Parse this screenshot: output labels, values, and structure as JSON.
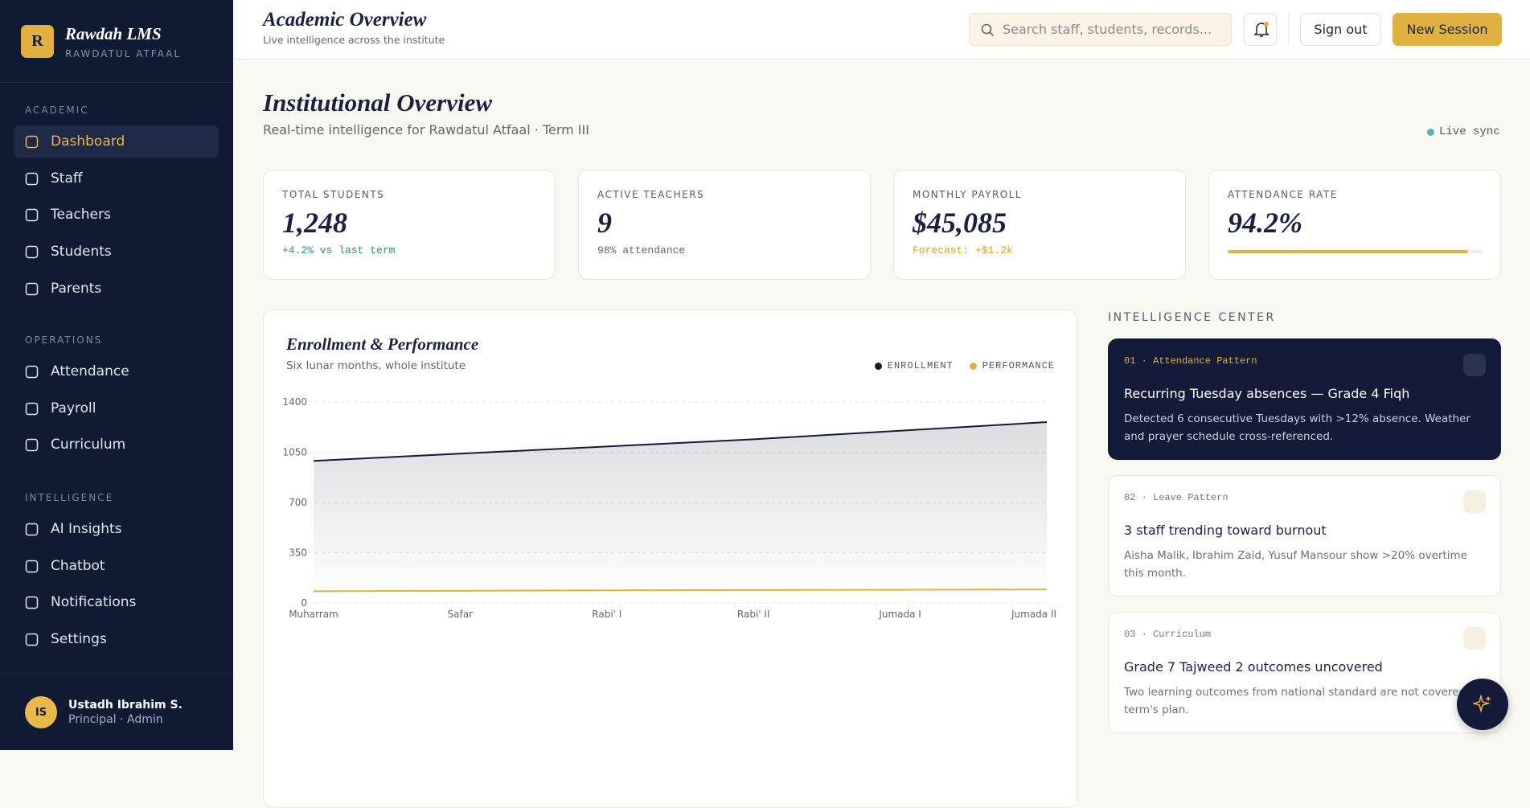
{
  "brand": {
    "logo": "R",
    "name": "Rawdah LMS",
    "tagline": "RAWDATUL ATFAAL"
  },
  "nav": [
    {
      "section": "ACADEMIC",
      "items": [
        "Dashboard",
        "Staff",
        "Teachers",
        "Students",
        "Parents"
      ]
    },
    {
      "section": "OPERATIONS",
      "items": [
        "Attendance",
        "Payroll",
        "Curriculum"
      ]
    },
    {
      "section": "INTELLIGENCE",
      "items": [
        "AI Insights",
        "Chatbot",
        "Notifications",
        "Settings"
      ]
    }
  ],
  "user": {
    "initials": "IS",
    "name": "Ustadh Ibrahim S.",
    "role": "Principal · Admin"
  },
  "header": {
    "title": "Academic Overview",
    "subtitle": "Live intelligence across the institute",
    "search_placeholder": "Search staff, students, records...",
    "sign_out": "Sign out",
    "new_session": "New Session"
  },
  "overview": {
    "title": "Institutional Overview",
    "subtitle": "Real-time intelligence for Rawdatul Atfaal · Term III",
    "status": "Live sync"
  },
  "stats": [
    {
      "label": "TOTAL STUDENTS",
      "value": "1,248",
      "note": "+4.2% vs last term"
    },
    {
      "label": "ACTIVE TEACHERS",
      "value": "9",
      "note": "98% attendance"
    },
    {
      "label": "MONTHLY PAYROLL",
      "value": "$45,085",
      "note": "Forecast: +$1.2k"
    },
    {
      "label": "ATTENDANCE RATE",
      "value": "94.2%",
      "progress": 94.2
    }
  ],
  "chart": {
    "type": "line",
    "title": "Enrollment & Performance",
    "subtitle": "Six lunar months, whole institute",
    "categories": [
      "Muharram",
      "Safar",
      "Rabi' I",
      "Rabi' II",
      "Jumada I",
      "Jumada II"
    ],
    "series": [
      {
        "name": "ENROLLMENT",
        "color": "#141b38",
        "values": [
          990,
          1040,
          1090,
          1140,
          1200,
          1260
        ]
      },
      {
        "name": "PERFORMANCE",
        "color": "#e0b040",
        "values": [
          82,
          85,
          88,
          90,
          92,
          94
        ]
      }
    ],
    "ylim": [
      0,
      1400
    ],
    "yticks": [
      0,
      350,
      700,
      1050,
      1400
    ],
    "grid": true
  },
  "intelligence": {
    "title": "INTELLIGENCE CENTER",
    "cards": [
      {
        "tag": "01 · Attendance Pattern",
        "title": "Recurring Tuesday absences — Grade 4 Fiqh",
        "body": "Detected 6 consecutive Tuesdays with >12% absence. Weather and prayer schedule cross-referenced."
      },
      {
        "tag": "02 · Leave Pattern",
        "title": "3 staff trending toward burnout",
        "body": "Aisha Malik, Ibrahim Zaid, Yusuf Mansour show >20% overtime this month."
      },
      {
        "tag": "03 · Curriculum",
        "title": "Grade 7 Tajweed 2 outcomes uncovered",
        "body": "Two learning outcomes from national standard are not covered in term's plan."
      }
    ]
  }
}
